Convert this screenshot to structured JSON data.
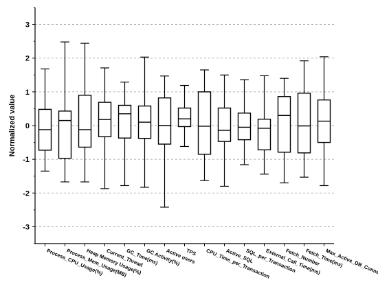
{
  "chart_data": {
    "type": "box",
    "title": "",
    "xlabel": "",
    "ylabel": "Normalized value",
    "ylim": [
      -3.5,
      3.5
    ],
    "yticks": [
      -3,
      -2,
      -1,
      0,
      1,
      2,
      3
    ],
    "grid": "horizontal-dashed",
    "categories": [
      "Process_CPU_Usage(%)",
      "Process_Mem_Usage(MB)",
      "Heap Memory Usage(%)",
      "Current_Thread",
      "GC_Time(ms)",
      "GC Activity(%)",
      "Active users",
      "TPS",
      "CPU_Time_per_Transaction",
      "Active_SQL",
      "SQL_per_Transaction",
      "External_Call_Time(ms)",
      "Fetch_Number",
      "Fetch_Time(ms)",
      "Max_Active_DB_Connection"
    ],
    "boxes": [
      {
        "min": -1.35,
        "q1": -0.73,
        "median": -0.12,
        "q3": 0.48,
        "max": 1.68
      },
      {
        "min": -1.67,
        "q1": -0.97,
        "median": 0.15,
        "q3": 0.43,
        "max": 2.48
      },
      {
        "min": -1.67,
        "q1": -0.64,
        "median": -0.12,
        "q3": 0.9,
        "max": 2.44
      },
      {
        "min": -1.87,
        "q1": -0.33,
        "median": 0.18,
        "q3": 0.69,
        "max": 1.71
      },
      {
        "min": -1.78,
        "q1": -0.37,
        "median": 0.35,
        "q3": 0.6,
        "max": 1.29
      },
      {
        "min": -1.83,
        "q1": -0.38,
        "median": 0.1,
        "q3": 0.58,
        "max": 2.03
      },
      {
        "min": -2.42,
        "q1": -0.55,
        "median": 0.0,
        "q3": 0.82,
        "max": 1.47
      },
      {
        "min": -0.62,
        "q1": -0.03,
        "median": 0.2,
        "q3": 0.52,
        "max": 1.19
      },
      {
        "min": -1.63,
        "q1": -0.85,
        "median": -0.02,
        "q3": 1.0,
        "max": 1.65
      },
      {
        "min": -1.8,
        "q1": -0.47,
        "median": -0.14,
        "q3": 0.52,
        "max": 1.5
      },
      {
        "min": -1.16,
        "q1": -0.42,
        "median": -0.05,
        "q3": 0.37,
        "max": 1.36
      },
      {
        "min": -1.44,
        "q1": -0.72,
        "median": -0.08,
        "q3": 0.19,
        "max": 1.48
      },
      {
        "min": -1.7,
        "q1": -0.79,
        "median": 0.3,
        "q3": 0.86,
        "max": 1.4
      },
      {
        "min": -1.53,
        "q1": -0.81,
        "median": -0.01,
        "q3": 0.96,
        "max": 1.92
      },
      {
        "min": -1.78,
        "q1": -0.5,
        "median": 0.13,
        "q3": 0.76,
        "max": 2.04
      }
    ]
  }
}
